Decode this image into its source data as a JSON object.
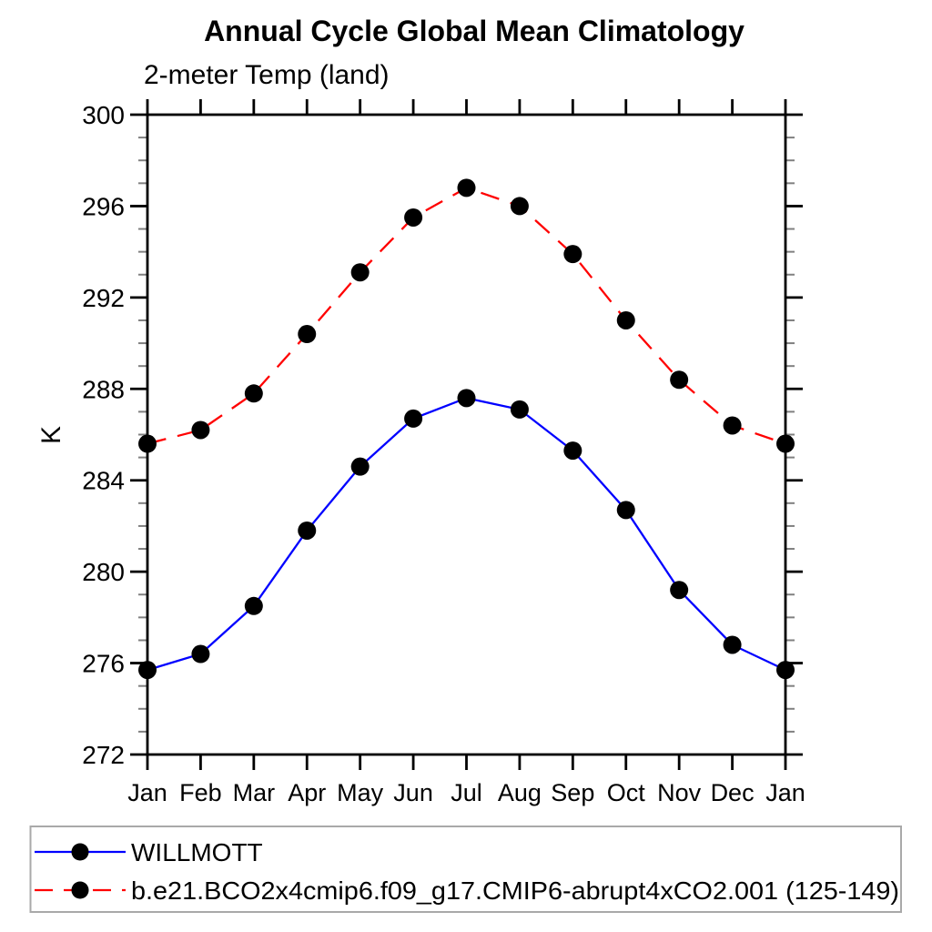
{
  "title": "Annual Cycle Global Mean Climatology",
  "subtitle": "2-meter Temp (land)",
  "y_axis_label": "K",
  "colors": {
    "background": "#ffffff",
    "axis": "#000000",
    "minor_tick": "#808080",
    "tick_label": "#000000",
    "legend_border": "#a9a9a9",
    "marker": "#000000",
    "series_blue": "#0000ff",
    "series_red": "#ff0000"
  },
  "chart_data": {
    "type": "line",
    "title": "Annual Cycle Global Mean Climatology",
    "subtitle": "2-meter Temp (land)",
    "xlabel": "",
    "ylabel": "K",
    "categories": [
      "Jan",
      "Feb",
      "Mar",
      "Apr",
      "May",
      "Jun",
      "Jul",
      "Aug",
      "Sep",
      "Oct",
      "Nov",
      "Dec",
      "Jan"
    ],
    "ylim": [
      272,
      300
    ],
    "ytick_major": [
      272,
      276,
      280,
      284,
      288,
      292,
      296,
      300
    ],
    "ytick_minor_step": 1,
    "grid": false,
    "legend_position": "bottom-left-box",
    "series": [
      {
        "name": "WILLMOTT",
        "line_style": "solid",
        "color": "#0000ff",
        "marker": "filled-circle",
        "marker_color": "#000000",
        "values": [
          275.7,
          276.4,
          278.5,
          281.8,
          284.6,
          286.7,
          287.6,
          287.1,
          285.3,
          282.7,
          279.2,
          276.8,
          275.7
        ]
      },
      {
        "name": "b.e21.BCO2x4cmip6.f09_g17.CMIP6-abrupt4xCO2.001 (125-149)",
        "line_style": "dashed",
        "color": "#ff0000",
        "marker": "filled-circle",
        "marker_color": "#000000",
        "values": [
          285.6,
          286.2,
          287.8,
          290.4,
          293.1,
          295.5,
          296.8,
          296.0,
          293.9,
          291.0,
          288.4,
          286.4,
          285.6
        ]
      }
    ]
  }
}
